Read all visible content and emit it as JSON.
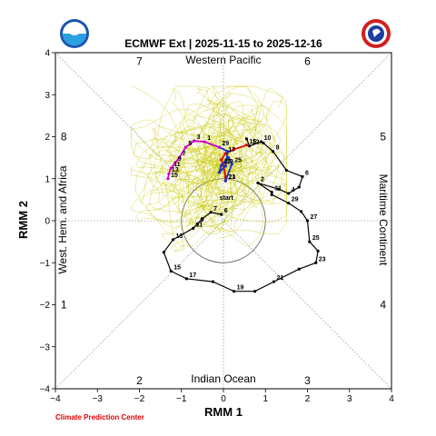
{
  "chart_data": {
    "type": "line",
    "title": "ECMWF Ext | 2025-11-15 to 2025-12-16",
    "xlabel": "RMM 1",
    "ylabel": "RMM 2",
    "xlim": [
      -4,
      4
    ],
    "ylim": [
      -4,
      4
    ],
    "xticks": [
      "−4",
      "−3",
      "−2",
      "−1",
      "0",
      "1",
      "2",
      "3",
      "4"
    ],
    "yticks": [
      "−4",
      "−3",
      "−2",
      "−1",
      "0",
      "1",
      "2",
      "3",
      "4"
    ],
    "grid": "dotted diagonals and zero lines",
    "phases": [
      "1",
      "2",
      "3",
      "4",
      "5",
      "6",
      "7",
      "8"
    ],
    "regions": {
      "top": "Western Pacific",
      "bottom": "Indian Ocean",
      "left": "West. Hem. and Africa",
      "right": "Maritime Continent"
    },
    "start_label": "start",
    "credit": "Climate Prediction Center",
    "colors": {
      "observed": "#000000",
      "ensemble": "#c8c800",
      "mean_week1": "#e00000",
      "mean_week2": "#1530c8",
      "mean_week3": "#cc00cc"
    },
    "series": [
      {
        "key": "observed",
        "points": [
          {
            "x": -0.05,
            "y": 0.15,
            "label": "6"
          },
          {
            "x": -0.3,
            "y": 0.2,
            "label": "7"
          },
          {
            "x": -0.5,
            "y": 0.05,
            "label": ""
          },
          {
            "x": -0.62,
            "y": -0.08,
            "label": "9"
          },
          {
            "x": -0.72,
            "y": -0.18,
            "label": "11"
          },
          {
            "x": -1.2,
            "y": -0.45,
            "label": "13"
          },
          {
            "x": -1.42,
            "y": -0.75,
            "label": ""
          },
          {
            "x": -1.25,
            "y": -1.2,
            "label": "15"
          },
          {
            "x": -0.88,
            "y": -1.38,
            "label": "17"
          },
          {
            "x": -0.25,
            "y": -1.45,
            "label": ""
          },
          {
            "x": 0.25,
            "y": -1.68,
            "label": "19"
          },
          {
            "x": 0.75,
            "y": -1.68,
            "label": ""
          },
          {
            "x": 1.2,
            "y": -1.45,
            "label": "21"
          },
          {
            "x": 1.8,
            "y": -1.15,
            "label": ""
          },
          {
            "x": 2.2,
            "y": -1.0,
            "label": "23"
          },
          {
            "x": 2.25,
            "y": -0.72,
            "label": ""
          },
          {
            "x": 2.05,
            "y": -0.5,
            "label": "25"
          },
          {
            "x": 2.0,
            "y": 0.0,
            "label": "27"
          },
          {
            "x": 1.85,
            "y": 0.22,
            "label": ""
          },
          {
            "x": 1.55,
            "y": 0.42,
            "label": "29"
          },
          {
            "x": 1.15,
            "y": 0.62,
            "label": ""
          },
          {
            "x": 1.15,
            "y": 0.68,
            "label": "31"
          },
          {
            "x": 0.82,
            "y": 0.9,
            "label": "2"
          },
          {
            "x": 1.32,
            "y": 0.75,
            "label": ""
          },
          {
            "x": 1.55,
            "y": 0.65,
            "label": "4"
          },
          {
            "x": 1.8,
            "y": 0.8,
            "label": ""
          },
          {
            "x": 1.88,
            "y": 1.05,
            "label": "6"
          },
          {
            "x": 1.5,
            "y": 1.2,
            "label": ""
          },
          {
            "x": 1.18,
            "y": 1.65,
            "label": "8"
          },
          {
            "x": 0.95,
            "y": 1.85,
            "label": ""
          },
          {
            "x": 0.9,
            "y": 1.88,
            "label": "10"
          },
          {
            "x": 0.62,
            "y": 1.78,
            "label": "12"
          },
          {
            "x": 0.55,
            "y": 1.95,
            "label": ""
          }
        ]
      },
      {
        "key": "mean_week1",
        "points": [
          {
            "x": 0.55,
            "y": 1.8,
            "label": "15"
          },
          {
            "x": 0.25,
            "y": 1.7,
            "label": ""
          },
          {
            "x": 0.05,
            "y": 1.6,
            "label": "17"
          },
          {
            "x": -0.05,
            "y": 1.45,
            "label": ""
          },
          {
            "x": 0.0,
            "y": 1.32,
            "label": "19"
          },
          {
            "x": 0.05,
            "y": 1.05,
            "label": ""
          },
          {
            "x": 0.05,
            "y": 0.95,
            "label": "21"
          }
        ]
      },
      {
        "key": "mean_week2",
        "points": [
          {
            "x": 0.05,
            "y": 0.95,
            "label": "23"
          },
          {
            "x": 0.2,
            "y": 1.35,
            "label": "25"
          },
          {
            "x": 0.12,
            "y": 1.5,
            "label": ""
          },
          {
            "x": -0.05,
            "y": 1.32,
            "label": "27"
          },
          {
            "x": -0.1,
            "y": 1.15,
            "label": ""
          },
          {
            "x": 0.05,
            "y": 1.3,
            "label": ""
          },
          {
            "x": 0.1,
            "y": 1.65,
            "label": ""
          },
          {
            "x": -0.1,
            "y": 1.75,
            "label": "29"
          }
        ]
      },
      {
        "key": "mean_week3",
        "points": [
          {
            "x": -0.1,
            "y": 1.75,
            "label": ""
          },
          {
            "x": -0.45,
            "y": 1.88,
            "label": "1"
          },
          {
            "x": -0.7,
            "y": 1.9,
            "label": "3"
          },
          {
            "x": -0.9,
            "y": 1.75,
            "label": "5"
          },
          {
            "x": -1.05,
            "y": 1.5,
            "label": "7"
          },
          {
            "x": -1.15,
            "y": 1.38,
            "label": "9"
          },
          {
            "x": -1.25,
            "y": 1.25,
            "label": "11"
          },
          {
            "x": -1.3,
            "y": 1.12,
            "label": "13"
          },
          {
            "x": -1.32,
            "y": 1.0,
            "label": "15"
          }
        ]
      }
    ]
  }
}
